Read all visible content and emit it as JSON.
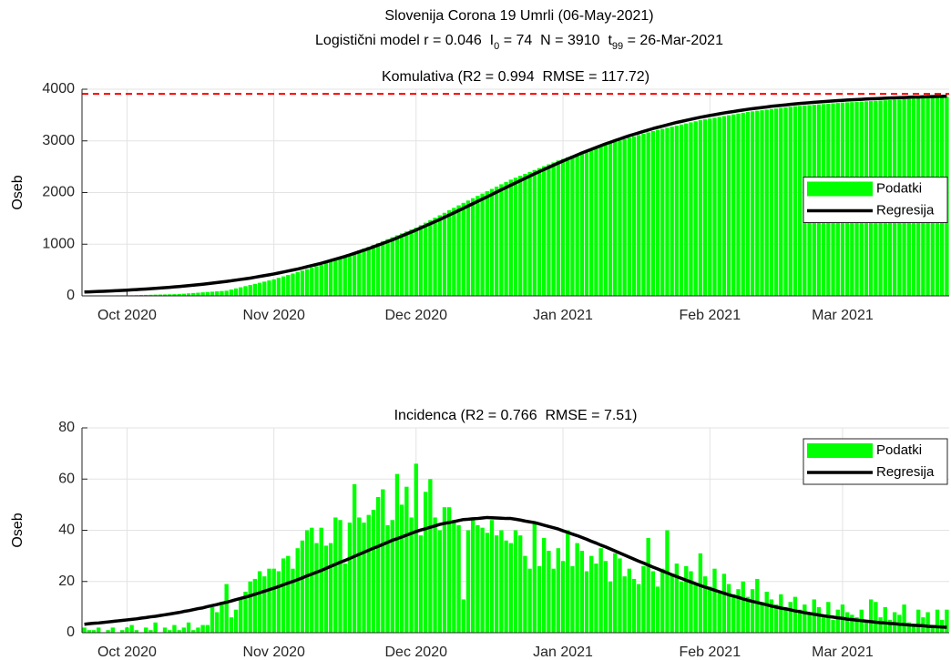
{
  "figure": {
    "title": "Slovenija Corona 19 Umrli (06-May-2021)",
    "model": [
      "Logistični model r = 0.046  I",
      "0",
      " = 74  N = 3910  t",
      "99",
      " = 26-Mar-2021"
    ]
  },
  "chart_data": [
    {
      "type": "bar",
      "title": "Komulativa (R2 = 0.994  RMSE = 117.72)",
      "ylabel": "Oseb",
      "categories": [
        null,
        null,
        null,
        null,
        null,
        null,
        null,
        null,
        null,
        "Oct 2020",
        null,
        null,
        null,
        null,
        null,
        null,
        null,
        null,
        null,
        null,
        null,
        null,
        null,
        null,
        null,
        null,
        null,
        null,
        null,
        null,
        null,
        null,
        null,
        null,
        null,
        null,
        null,
        null,
        null,
        null,
        "Nov 2020",
        null,
        null,
        null,
        null,
        null,
        null,
        null,
        null,
        null,
        null,
        null,
        null,
        null,
        null,
        null,
        null,
        null,
        null,
        null,
        null,
        null,
        null,
        null,
        null,
        null,
        null,
        null,
        null,
        null,
        "Dec 2020",
        null,
        null,
        null,
        null,
        null,
        null,
        null,
        null,
        null,
        null,
        null,
        null,
        null,
        null,
        null,
        null,
        null,
        null,
        null,
        null,
        null,
        null,
        null,
        null,
        null,
        null,
        null,
        null,
        null,
        null,
        "Jan 2021",
        null,
        null,
        null,
        null,
        null,
        null,
        null,
        null,
        null,
        null,
        null,
        null,
        null,
        null,
        null,
        null,
        null,
        null,
        null,
        null,
        null,
        null,
        null,
        null,
        null,
        null,
        null,
        null,
        null,
        null,
        "Feb 2021",
        null,
        null,
        null,
        null,
        null,
        null,
        null,
        null,
        null,
        null,
        null,
        null,
        null,
        null,
        null,
        null,
        null,
        null,
        null,
        null,
        null,
        null,
        null,
        null,
        null,
        null,
        null,
        "Mar 2021",
        null,
        null,
        null,
        null,
        null,
        null,
        null,
        null,
        null,
        null,
        null,
        null,
        null,
        null,
        null,
        null,
        null,
        null,
        null,
        null,
        null,
        null
      ],
      "series": [
        {
          "name": "Podatki",
          "type": "bar",
          "color": "#00ff00",
          "values": [
            5,
            6,
            6,
            7,
            8,
            9,
            9,
            10,
            11,
            11,
            12,
            14,
            17,
            19,
            21,
            24,
            26,
            28,
            30,
            33,
            35,
            42,
            48,
            55,
            61,
            68,
            74,
            81,
            87,
            94,
            100,
            122,
            144,
            166,
            188,
            210,
            232,
            254,
            276,
            298,
            320,
            348,
            376,
            404,
            432,
            460,
            488,
            516,
            544,
            572,
            600,
            635,
            670,
            705,
            740,
            775,
            810,
            845,
            880,
            915,
            950,
            987,
            1024,
            1061,
            1098,
            1135,
            1172,
            1209,
            1246,
            1283,
            1320,
            1368,
            1416,
            1464,
            1512,
            1560,
            1608,
            1656,
            1704,
            1752,
            1800,
            1845,
            1890,
            1935,
            1980,
            2025,
            2070,
            2115,
            2160,
            2205,
            2250,
            2287,
            2324,
            2361,
            2398,
            2435,
            2472,
            2509,
            2546,
            2583,
            2620,
            2651,
            2682,
            2713,
            2744,
            2775,
            2806,
            2837,
            2868,
            2899,
            2930,
            2956,
            2982,
            3008,
            3034,
            3060,
            3086,
            3112,
            3138,
            3164,
            3190,
            3211,
            3232,
            3253,
            3274,
            3295,
            3316,
            3337,
            3358,
            3379,
            3400,
            3416,
            3432,
            3448,
            3464,
            3480,
            3496,
            3512,
            3528,
            3544,
            3560,
            3571,
            3582,
            3593,
            3604,
            3615,
            3626,
            3637,
            3648,
            3659,
            3670,
            3677,
            3684,
            3691,
            3698,
            3705,
            3712,
            3719,
            3726,
            3733,
            3740,
            3745,
            3750,
            3755,
            3760,
            3765,
            3770,
            3775,
            3780,
            3785,
            3790,
            3796,
            3801,
            3807,
            3812,
            3818,
            3823,
            3829,
            3834,
            3840,
            3845,
            3848,
            3852
          ]
        },
        {
          "name": "Regresija",
          "type": "line",
          "color": "#000000",
          "values": [
            74,
            78,
            81,
            85,
            89,
            93,
            97,
            102,
            106,
            111,
            116,
            122,
            127,
            133,
            139,
            145,
            152,
            159,
            166,
            173,
            181,
            189,
            198,
            207,
            216,
            225,
            236,
            246,
            257,
            268,
            279,
            292,
            305,
            318,
            331,
            344,
            360,
            376,
            392,
            408,
            424,
            443,
            462,
            481,
            500,
            519,
            541,
            564,
            586,
            609,
            631,
            657,
            684,
            710,
            736,
            763,
            793,
            823,
            853,
            884,
            914,
            948,
            982,
            1016,
            1050,
            1084,
            1122,
            1160,
            1198,
            1236,
            1274,
            1315,
            1356,
            1396,
            1437,
            1478,
            1521,
            1565,
            1608,
            1652,
            1695,
            1740,
            1784,
            1829,
            1873,
            1918,
            1963,
            2008,
            2053,
            2098,
            2143,
            2187,
            2231,
            2274,
            2318,
            2362,
            2404,
            2446,
            2487,
            2529,
            2571,
            2610,
            2649,
            2688,
            2727,
            2766,
            2801,
            2837,
            2872,
            2908,
            2943,
            2974,
            3006,
            3037,
            3069,
            3100,
            3128,
            3155,
            3183,
            3210,
            3238,
            3262,
            3286,
            3309,
            3333,
            3357,
            3377,
            3397,
            3417,
            3437,
            3457,
            3474,
            3491,
            3507,
            3524,
            3541,
            3555,
            3569,
            3583,
            3597,
            3611,
            3623,
            3634,
            3646,
            3657,
            3669,
            3678,
            3688,
            3697,
            3707,
            3716,
            3724,
            3731,
            3739,
            3746,
            3754,
            3760,
            3766,
            3773,
            3779,
            3785,
            3790,
            3795,
            3800,
            3805,
            3810,
            3814,
            3818,
            3822,
            3826,
            3830,
            3833,
            3837,
            3840,
            3844,
            3847,
            3849,
            3852,
            3854,
            3857,
            3859,
            3862,
            3864
          ]
        }
      ],
      "asymptote": {
        "value": 3910,
        "color": "#ff0000"
      },
      "ylim": [
        0,
        4000
      ],
      "yticks": [
        0,
        1000,
        2000,
        3000,
        4000
      ],
      "grid": true,
      "legend": "east"
    },
    {
      "type": "bar",
      "title": "Incidenca (R2 = 0.766  RMSE = 7.51)",
      "ylabel": "Oseb",
      "categories": [
        null,
        null,
        null,
        null,
        null,
        null,
        null,
        null,
        null,
        "Oct 2020",
        null,
        null,
        null,
        null,
        null,
        null,
        null,
        null,
        null,
        null,
        null,
        null,
        null,
        null,
        null,
        null,
        null,
        null,
        null,
        null,
        null,
        null,
        null,
        null,
        null,
        null,
        null,
        null,
        null,
        null,
        "Nov 2020",
        null,
        null,
        null,
        null,
        null,
        null,
        null,
        null,
        null,
        null,
        null,
        null,
        null,
        null,
        null,
        null,
        null,
        null,
        null,
        null,
        null,
        null,
        null,
        null,
        null,
        null,
        null,
        null,
        null,
        "Dec 2020",
        null,
        null,
        null,
        null,
        null,
        null,
        null,
        null,
        null,
        null,
        null,
        null,
        null,
        null,
        null,
        null,
        null,
        null,
        null,
        null,
        null,
        null,
        null,
        null,
        null,
        null,
        null,
        null,
        null,
        null,
        "Jan 2021",
        null,
        null,
        null,
        null,
        null,
        null,
        null,
        null,
        null,
        null,
        null,
        null,
        null,
        null,
        null,
        null,
        null,
        null,
        null,
        null,
        null,
        null,
        null,
        null,
        null,
        null,
        null,
        null,
        null,
        null,
        "Feb 2021",
        null,
        null,
        null,
        null,
        null,
        null,
        null,
        null,
        null,
        null,
        null,
        null,
        null,
        null,
        null,
        null,
        null,
        null,
        null,
        null,
        null,
        null,
        null,
        null,
        null,
        null,
        null,
        "Mar 2021",
        null,
        null,
        null,
        null,
        null,
        null,
        null,
        null,
        null,
        null,
        null,
        null,
        null,
        null,
        null,
        null,
        null,
        null,
        null,
        null,
        null,
        null
      ],
      "series": [
        {
          "name": "Podatki",
          "type": "bar",
          "color": "#00ff00",
          "values": [
            2,
            1,
            1,
            2,
            0,
            1,
            2,
            0,
            1,
            2,
            3,
            1,
            0,
            2,
            1,
            4,
            0,
            2,
            1,
            3,
            1,
            2,
            4,
            1,
            2,
            3,
            3,
            10,
            8,
            12,
            19,
            6,
            9,
            13,
            16,
            20,
            21,
            24,
            22,
            25,
            25,
            24,
            29,
            30,
            25,
            33,
            36,
            40,
            41,
            35,
            41,
            34,
            35,
            45,
            44,
            27,
            43,
            58,
            45,
            43,
            46,
            48,
            53,
            56,
            42,
            44,
            62,
            50,
            57,
            45,
            66,
            38,
            55,
            60,
            45,
            40,
            49,
            49,
            44,
            42,
            13,
            40,
            45,
            42,
            41,
            39,
            44,
            38,
            40,
            36,
            35,
            40,
            38,
            30,
            25,
            43,
            26,
            37,
            32,
            25,
            33,
            28,
            40,
            26,
            35,
            32,
            24,
            30,
            27,
            33,
            28,
            20,
            31,
            29,
            22,
            25,
            21,
            19,
            26,
            37,
            24,
            18,
            25,
            40,
            23,
            27,
            20,
            26,
            24,
            19,
            31,
            22,
            18,
            25,
            16,
            23,
            19,
            15,
            17,
            20,
            14,
            17,
            21,
            12,
            16,
            13,
            11,
            15,
            10,
            12,
            14,
            9,
            11,
            8,
            13,
            10,
            7,
            12,
            5,
            9,
            11,
            8,
            7,
            6,
            9,
            4,
            13,
            12,
            6,
            10,
            5,
            8,
            7,
            11,
            4,
            3,
            9,
            6,
            8,
            3,
            9,
            5,
            9
          ]
        },
        {
          "name": "Regresija",
          "type": "line",
          "color": "#000000",
          "values": [
            3.3,
            3.5,
            3.7,
            3.8,
            4.0,
            4.2,
            4.4,
            4.6,
            4.8,
            5.0,
            5.2,
            5.4,
            5.7,
            5.9,
            6.2,
            6.4,
            6.7,
            7.0,
            7.3,
            7.6,
            7.9,
            8.3,
            8.6,
            9.0,
            9.4,
            9.7,
            10.2,
            10.6,
            11.0,
            11.5,
            11.9,
            12.4,
            12.9,
            13.4,
            13.9,
            14.4,
            15.0,
            15.6,
            16.2,
            16.8,
            17.4,
            18.0,
            18.7,
            19.4,
            20.0,
            20.7,
            21.4,
            22.2,
            22.9,
            23.6,
            24.3,
            25.1,
            25.9,
            26.7,
            27.5,
            28.2,
            29.0,
            29.8,
            30.6,
            31.4,
            32.2,
            33.0,
            33.7,
            34.5,
            35.3,
            36.1,
            36.7,
            37.4,
            38.1,
            38.8,
            39.5,
            40.1,
            40.6,
            41.2,
            41.7,
            42.3,
            42.7,
            43.0,
            43.4,
            43.8,
            44.2,
            44.3,
            44.5,
            44.6,
            44.8,
            45.0,
            44.9,
            44.8,
            44.7,
            44.6,
            44.6,
            44.3,
            44.0,
            43.6,
            43.3,
            43.0,
            42.5,
            42.0,
            41.5,
            41.0,
            40.5,
            39.8,
            39.2,
            38.5,
            37.9,
            37.2,
            36.5,
            35.7,
            35.0,
            34.2,
            33.5,
            32.7,
            31.9,
            31.1,
            30.3,
            29.5,
            28.7,
            27.9,
            27.2,
            26.4,
            25.6,
            24.9,
            24.1,
            23.4,
            22.6,
            21.9,
            21.2,
            20.5,
            19.8,
            19.1,
            18.4,
            17.8,
            17.2,
            16.6,
            16.0,
            15.4,
            14.8,
            14.3,
            13.8,
            13.2,
            12.7,
            12.2,
            11.8,
            11.3,
            10.9,
            10.4,
            10.0,
            9.6,
            9.3,
            8.9,
            8.5,
            8.2,
            7.8,
            7.5,
            7.2,
            6.9,
            6.6,
            6.3,
            6.1,
            5.8,
            5.6,
            5.3,
            5.1,
            4.9,
            4.7,
            4.5,
            4.3,
            4.1,
            3.9,
            3.8,
            3.6,
            3.5,
            3.3,
            3.2,
            3.0,
            2.9,
            2.8,
            2.7,
            2.5,
            2.4,
            2.3,
            2.2,
            2.1
          ]
        }
      ],
      "ylim": [
        0,
        80
      ],
      "yticks": [
        0,
        20,
        40,
        60,
        80
      ],
      "grid": true,
      "legend": "northeast"
    }
  ]
}
